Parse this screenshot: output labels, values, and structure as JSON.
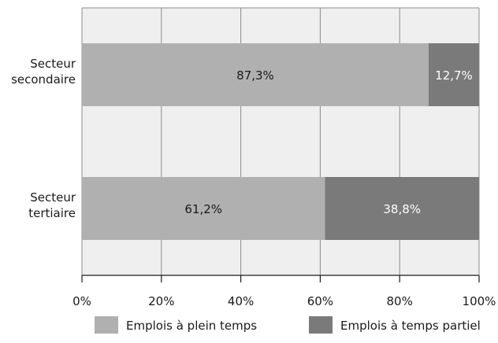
{
  "chart_data": {
    "type": "bar",
    "orientation": "horizontal",
    "stacked": true,
    "categories": [
      [
        "Secteur",
        "secondaire"
      ],
      [
        "Secteur",
        "tertiaire"
      ]
    ],
    "series": [
      {
        "name": "Emplois à plein temps",
        "values": [
          87.3,
          61.2
        ],
        "labels": [
          "87,3%",
          "61,2%"
        ],
        "color": "#b0b0b0",
        "label_color": "#1a1a1a"
      },
      {
        "name": "Emplois à temps partiel",
        "values": [
          12.7,
          38.8
        ],
        "labels": [
          "12,7%",
          "38,8%"
        ],
        "color": "#7a7a7a",
        "label_color": "#ffffff"
      }
    ],
    "x_ticks": [
      "0%",
      "20%",
      "40%",
      "60%",
      "80%",
      "100%"
    ],
    "xlim": [
      0,
      100
    ],
    "xlabel": "",
    "ylabel": "",
    "title": "",
    "grid": true,
    "legend_position": "bottom",
    "plot_background": "#efefef",
    "grid_color": "#8c8c8c"
  }
}
